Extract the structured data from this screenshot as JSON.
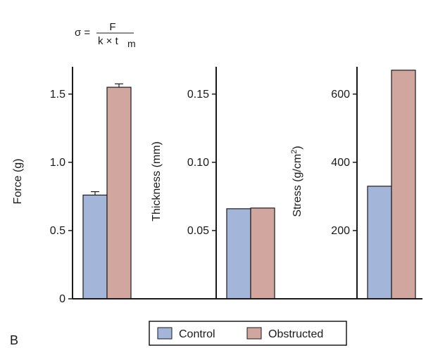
{
  "formula": {
    "lhs": "σ =",
    "numerator": "F",
    "denominator_main": "k × t",
    "denominator_sub": "m"
  },
  "panel_letter": "B",
  "legend": {
    "entries": [
      {
        "label": "Control",
        "color": "#a3b6d9"
      },
      {
        "label": "Obstructed",
        "color": "#d1a69e"
      }
    ]
  },
  "chart_data": [
    {
      "type": "bar",
      "ylabel": "Force (g)",
      "ylabel_sup": "",
      "ylabel_suffix": "",
      "ylim": [
        0,
        1.7
      ],
      "yticks": [
        0,
        0.5,
        1.0,
        1.5
      ],
      "ytick_labels": [
        "0",
        "0.5",
        "1.0",
        "1.5"
      ],
      "categories": [
        "Control",
        "Obstructed"
      ],
      "values": [
        0.76,
        1.55
      ],
      "errors": [
        0.025,
        0.025
      ]
    },
    {
      "type": "bar",
      "ylabel": "Thickness (mm)",
      "ylabel_sup": "",
      "ylabel_suffix": "",
      "ylim": [
        0,
        0.17
      ],
      "yticks": [
        0.05,
        0.1,
        0.15
      ],
      "ytick_labels": [
        "0.05",
        "0.10",
        "0.15"
      ],
      "categories": [
        "Control",
        "Obstructed"
      ],
      "values": [
        0.066,
        0.0665
      ],
      "errors": [
        null,
        null
      ]
    },
    {
      "type": "bar",
      "ylabel": "Stress (g/cm",
      "ylabel_sup": "2",
      "ylabel_suffix": ")",
      "ylim": [
        0,
        680
      ],
      "yticks": [
        200,
        400,
        600
      ],
      "ytick_labels": [
        "200",
        "400",
        "600"
      ],
      "categories": [
        "Control",
        "Obstructed"
      ],
      "values": [
        330,
        670
      ],
      "errors": [
        null,
        null
      ]
    }
  ]
}
